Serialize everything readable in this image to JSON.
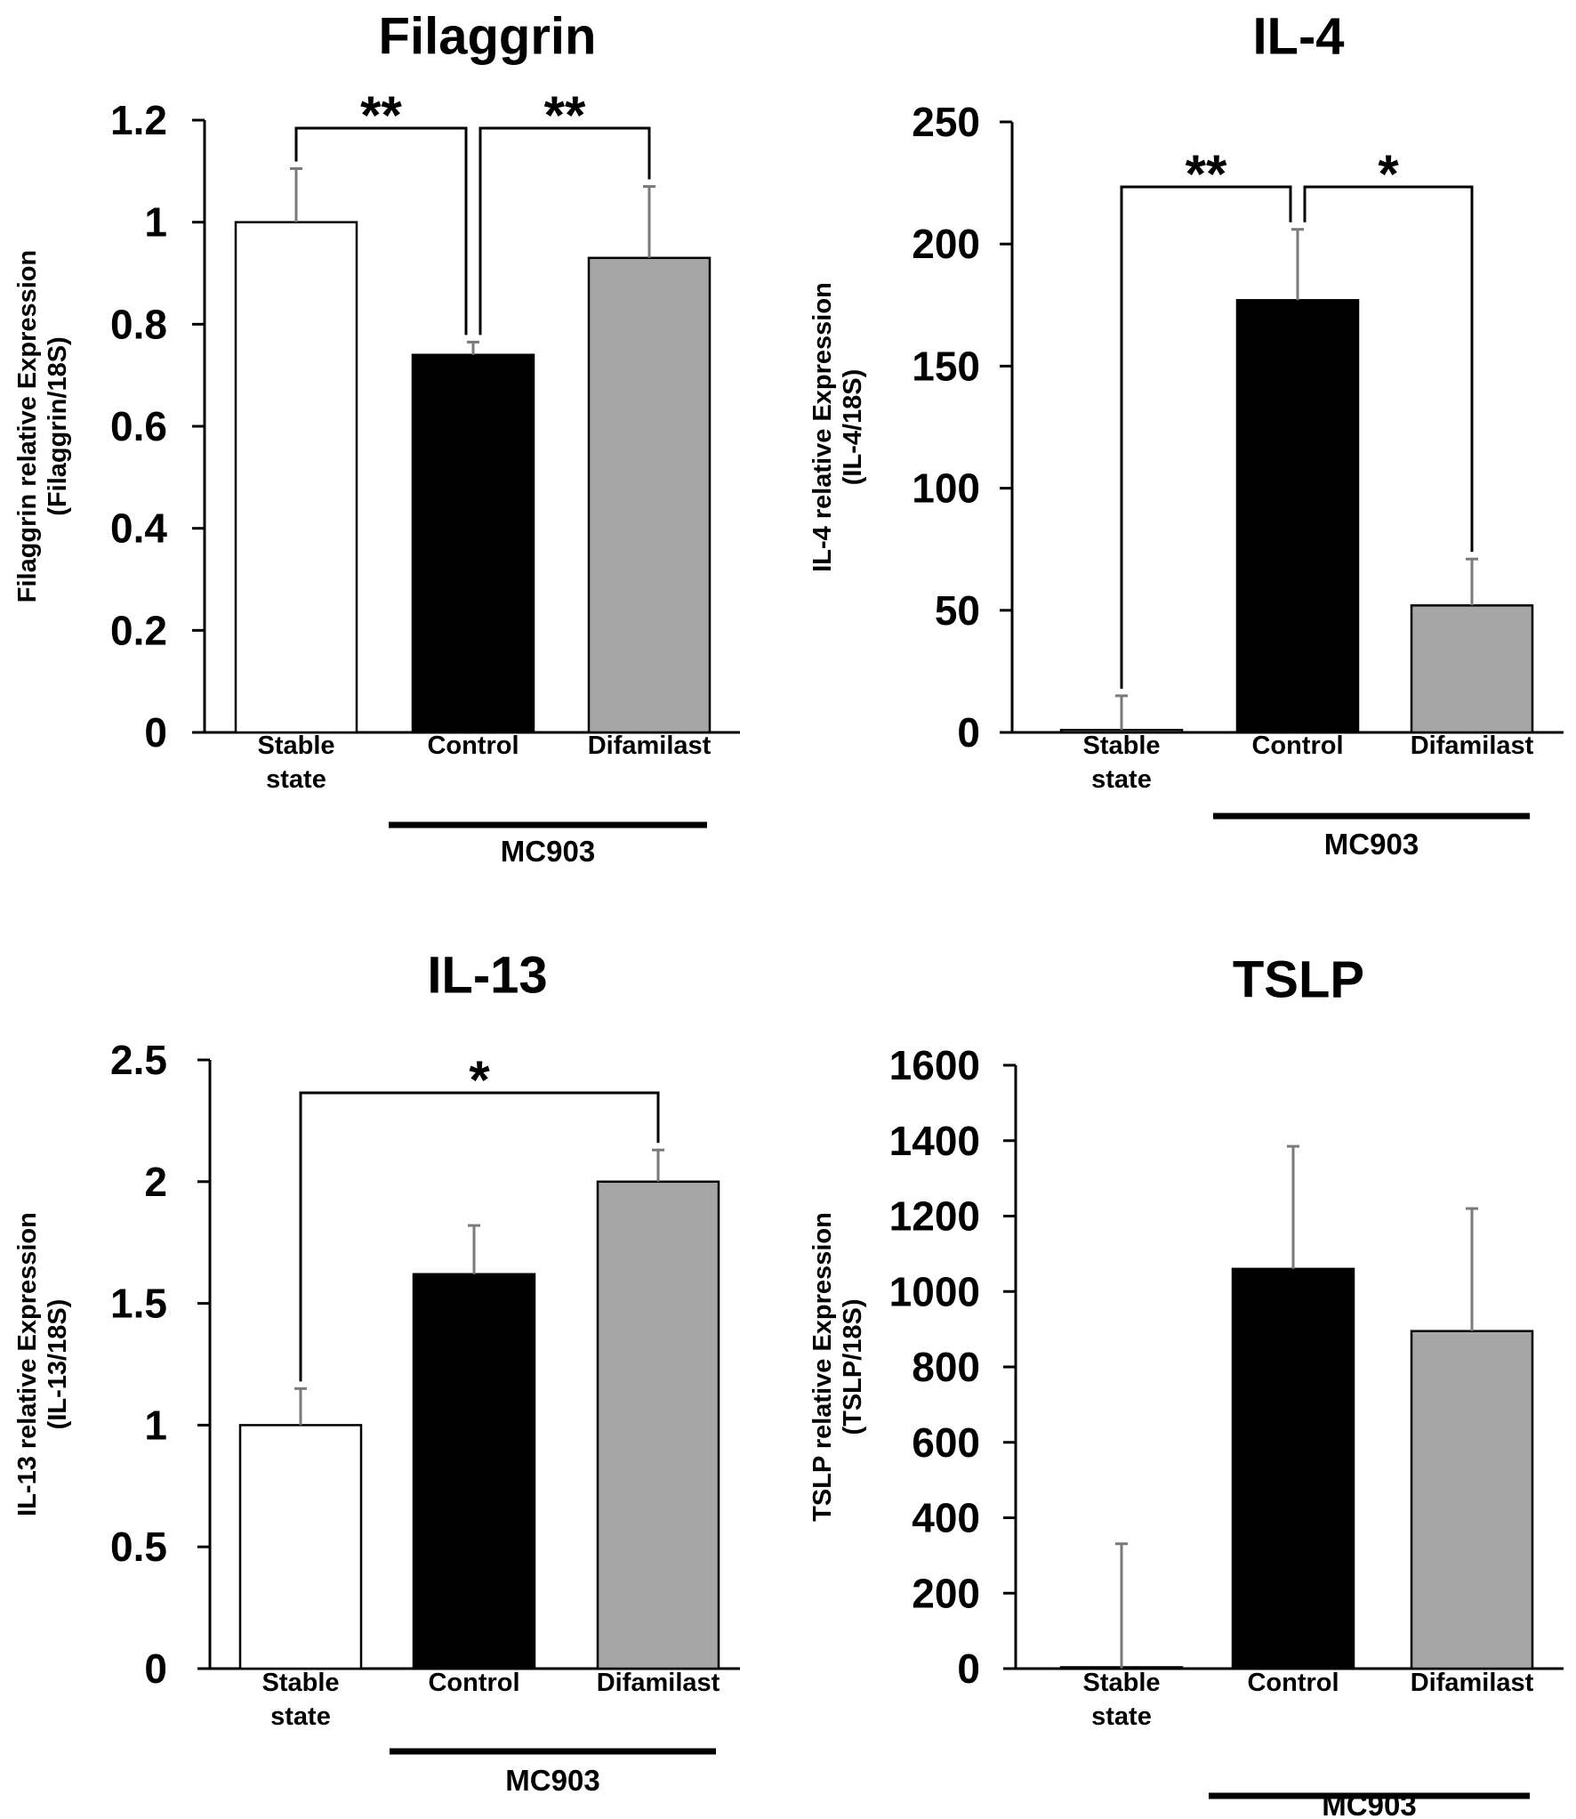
{
  "chart_data": [
    {
      "type": "bar",
      "title": "Filaggrin",
      "ylabel": [
        "Filaggrin relative Expression",
        "(Filaggrin/18S)"
      ],
      "categories": [
        [
          "Stable",
          "state"
        ],
        [
          "Control"
        ],
        [
          "Difamilast"
        ]
      ],
      "values": [
        1.0,
        0.74,
        0.93
      ],
      "errors": [
        0.105,
        0.025,
        0.14
      ],
      "colors": [
        "#ffffff",
        "#000000",
        "#a6a6a6"
      ],
      "ylim": [
        0,
        1.2
      ],
      "yticks": [
        0,
        0.2,
        0.4,
        0.6,
        0.8,
        1,
        1.2
      ],
      "ytick_labels": [
        "0",
        "0.2",
        "0.4",
        "0.6",
        "0.8",
        "1",
        "1.2"
      ],
      "group_label": "MC903",
      "group_span": [
        1,
        2
      ],
      "significance": [
        {
          "from": 0,
          "to": 1,
          "label": "**"
        },
        {
          "from": 1,
          "to": 2,
          "label": "**"
        }
      ]
    },
    {
      "type": "bar",
      "title": "IL-4",
      "ylabel": [
        "IL-4 relative Expression",
        "(IL-4/18S)"
      ],
      "categories": [
        [
          "Stable",
          "state"
        ],
        [
          "Control"
        ],
        [
          "Difamilast"
        ]
      ],
      "values": [
        1,
        177,
        52
      ],
      "errors": [
        14,
        29,
        19
      ],
      "colors": [
        "#ffffff",
        "#000000",
        "#a6a6a6"
      ],
      "ylim": [
        0,
        250
      ],
      "yticks": [
        0,
        50,
        100,
        150,
        200,
        250
      ],
      "ytick_labels": [
        "0",
        "50",
        "100",
        "150",
        "200",
        "250"
      ],
      "group_label": "MC903",
      "group_span": [
        1,
        2
      ],
      "significance": [
        {
          "from": 0,
          "to": 1,
          "label": "**"
        },
        {
          "from": 1,
          "to": 2,
          "label": "*"
        }
      ]
    },
    {
      "type": "bar",
      "title": "IL-13",
      "ylabel": [
        "IL-13 relative Expression",
        "(IL-13/18S)"
      ],
      "categories": [
        [
          "Stable",
          "state"
        ],
        [
          "Control"
        ],
        [
          "Difamilast"
        ]
      ],
      "values": [
        1.0,
        1.62,
        2.0
      ],
      "errors": [
        0.15,
        0.2,
        0.13
      ],
      "colors": [
        "#ffffff",
        "#000000",
        "#a6a6a6"
      ],
      "ylim": [
        0,
        2.5
      ],
      "yticks": [
        0,
        0.5,
        1,
        1.5,
        2,
        2.5
      ],
      "ytick_labels": [
        "0",
        "0.5",
        "1",
        "1.5",
        "2",
        "2.5"
      ],
      "group_label": "MC903",
      "group_span": [
        1,
        2
      ],
      "significance": [
        {
          "from": 0,
          "to": 2,
          "label": "*"
        }
      ]
    },
    {
      "type": "bar",
      "title": "TSLP",
      "ylabel": [
        "TSLP relative Expression",
        "(TSLP/18S)"
      ],
      "categories": [
        [
          "Stable",
          "state"
        ],
        [
          "Control"
        ],
        [
          "Difamilast"
        ]
      ],
      "values": [
        1,
        1060,
        895
      ],
      "errors": [
        330,
        325,
        325
      ],
      "colors": [
        "#ffffff",
        "#000000",
        "#a6a6a6"
      ],
      "ylim": [
        0,
        1600
      ],
      "yticks": [
        0,
        200,
        400,
        600,
        800,
        1000,
        1200,
        1400,
        1600
      ],
      "ytick_labels": [
        "0",
        "200",
        "400",
        "600",
        "800",
        "1000",
        "1200",
        "1400",
        "1600"
      ],
      "group_label": "MC903",
      "group_span": [
        1,
        2
      ],
      "significance": []
    }
  ]
}
